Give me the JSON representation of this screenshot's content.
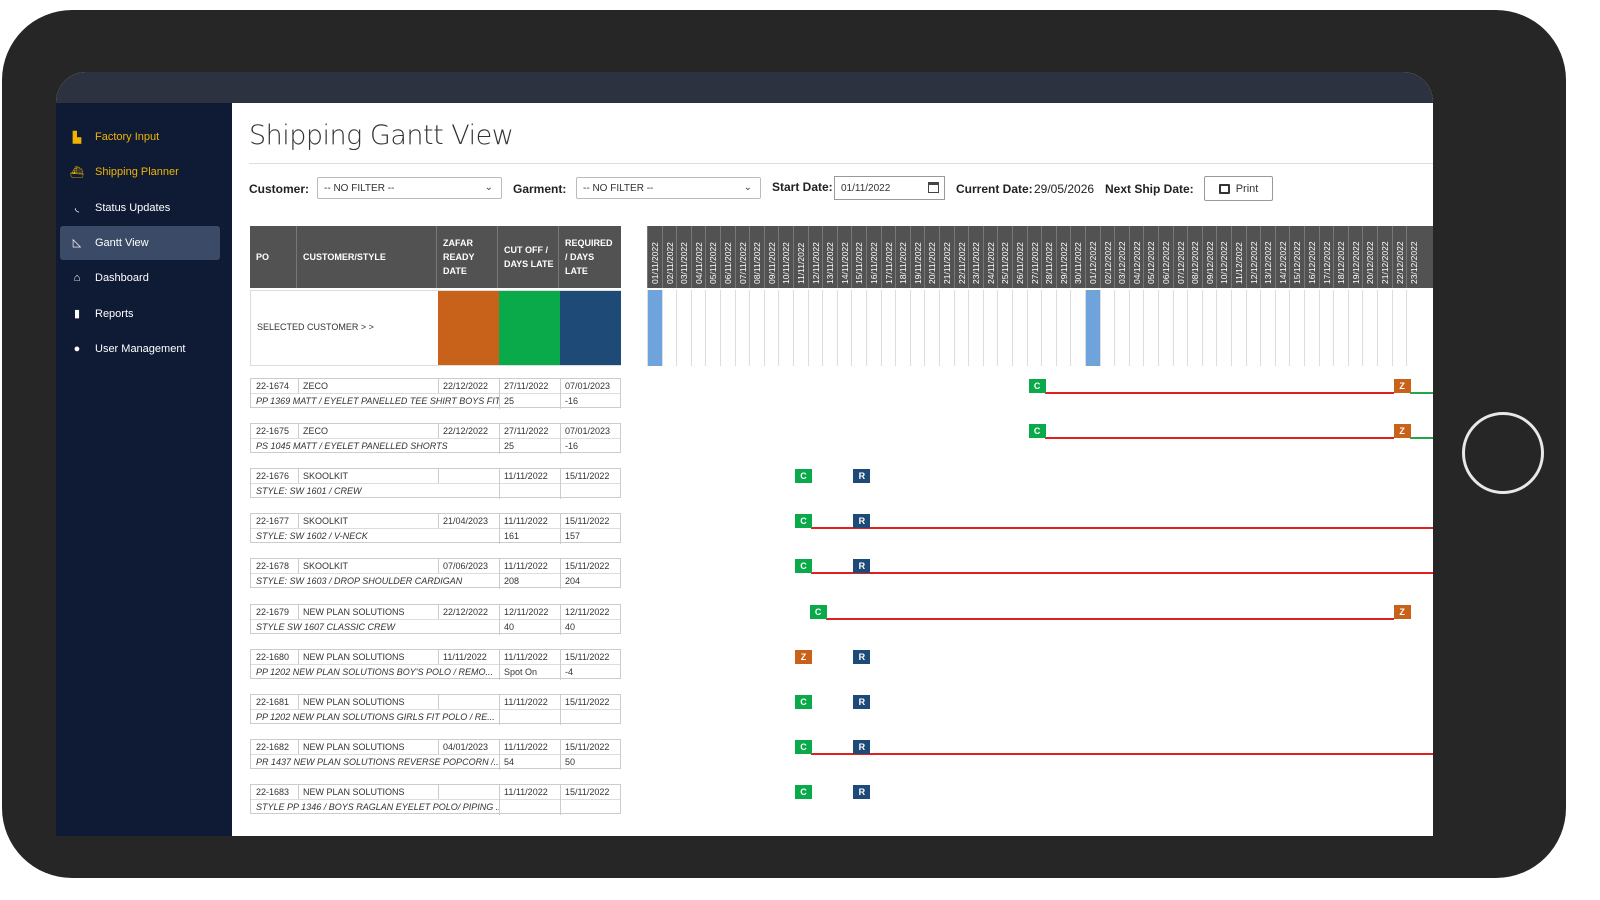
{
  "sidebar": {
    "items": [
      {
        "label": "Factory Input",
        "icon": "factory-icon",
        "color": "#f0b400"
      },
      {
        "label": "Shipping Planner",
        "icon": "ship-icon",
        "color": "#f0b400"
      },
      {
        "label": "Status Updates",
        "icon": "rss-icon",
        "color": "#ffffff"
      },
      {
        "label": "Gantt View",
        "icon": "chart-area-icon",
        "color": "#ffffff",
        "active": true
      },
      {
        "label": "Dashboard",
        "icon": "home-icon",
        "color": "#ffffff"
      },
      {
        "label": "Reports",
        "icon": "book-icon",
        "color": "#ffffff"
      },
      {
        "label": "User Management",
        "icon": "user-icon",
        "color": "#ffffff"
      }
    ]
  },
  "page": {
    "title": "Shipping Gantt View"
  },
  "filters": {
    "customer_label": "Customer:",
    "customer_value": "-- NO FILTER --",
    "garment_label": "Garment:",
    "garment_value": "-- NO FILTER --",
    "start_date_label": "Start Date:",
    "start_date_value": "01/11/2022",
    "current_date_label": "Current Date:",
    "current_date_value": "29/05/2026",
    "next_ship_label": "Next Ship Date:",
    "print_label": "Print"
  },
  "table": {
    "headers": {
      "po": "PO",
      "customer": "CUSTOMER/STYLE",
      "zafar_l1": "ZAFAR",
      "zafar_l2": "READY",
      "zafar_l3": "DATE",
      "cutoff_l1": "CUT OFF /",
      "cutoff_l2": "DAYS LATE",
      "req_l1": "REQUIRED",
      "req_l2": "/ DAYS",
      "req_l3": "LATE"
    },
    "selected_label": "SELECTED CUSTOMER > >",
    "swatch_colors": [
      "#c8621a",
      "#0aaa4a",
      "#1e4a78"
    ],
    "rows": [
      {
        "po": "22-1674",
        "customer": "ZECO",
        "style": "PP 1369 MATT / EYELET PANELLED TEE SHIRT BOYS FIT",
        "zafar": "22/12/2022",
        "cutoff": "27/11/2022",
        "cutoff_days": "25",
        "required": "07/01/2023",
        "req_days": "-16"
      },
      {
        "po": "22-1675",
        "customer": "ZECO",
        "style": "PS 1045 MATT / EYELET PANELLED SHORTS",
        "zafar": "22/12/2022",
        "cutoff": "27/11/2022",
        "cutoff_days": "25",
        "required": "07/01/2023",
        "req_days": "-16"
      },
      {
        "po": "22-1676",
        "customer": "SKOOLKIT",
        "style": "STYLE: SW 1601 / CREW",
        "zafar": "",
        "cutoff": "11/11/2022",
        "cutoff_days": "",
        "required": "15/11/2022",
        "req_days": ""
      },
      {
        "po": "22-1677",
        "customer": "SKOOLKIT",
        "style": "STYLE: SW 1602 / V-NECK",
        "zafar": "21/04/2023",
        "cutoff": "11/11/2022",
        "cutoff_days": "161",
        "required": "15/11/2022",
        "req_days": "157"
      },
      {
        "po": "22-1678",
        "customer": "SKOOLKIT",
        "style": "STYLE: SW 1603 / DROP SHOULDER CARDIGAN",
        "zafar": "07/06/2023",
        "cutoff": "11/11/2022",
        "cutoff_days": "208",
        "required": "15/11/2022",
        "req_days": "204"
      },
      {
        "po": "22-1679",
        "customer": "NEW PLAN SOLUTIONS",
        "style": "STYLE SW 1607 CLASSIC CREW",
        "zafar": "22/12/2022",
        "cutoff": "12/11/2022",
        "cutoff_days": "40",
        "required": "12/11/2022",
        "req_days": "40"
      },
      {
        "po": "22-1680",
        "customer": "NEW PLAN SOLUTIONS",
        "style": "PP 1202 NEW PLAN SOLUTIONS BOY'S POLO / REMO...",
        "zafar": "11/11/2022",
        "cutoff": "11/11/2022",
        "cutoff_days": "Spot On",
        "required": "15/11/2022",
        "req_days": "-4"
      },
      {
        "po": "22-1681",
        "customer": "NEW PLAN SOLUTIONS",
        "style": "PP 1202 NEW PLAN SOLUTIONS GIRLS FIT POLO / RE...",
        "zafar": "",
        "cutoff": "11/11/2022",
        "cutoff_days": "",
        "required": "15/11/2022",
        "req_days": ""
      },
      {
        "po": "22-1682",
        "customer": "NEW PLAN SOLUTIONS",
        "style": "PR 1437 NEW PLAN SOLUTIONS REVERSE POPCORN /...",
        "zafar": "04/01/2023",
        "cutoff": "11/11/2022",
        "cutoff_days": "54",
        "required": "15/11/2022",
        "req_days": "50"
      },
      {
        "po": "22-1683",
        "customer": "NEW PLAN SOLUTIONS",
        "style": "STYLE PP 1346 / BOYS RAGLAN EYELET POLO/ PIPING ...",
        "zafar": "",
        "cutoff": "11/11/2022",
        "cutoff_days": "",
        "required": "15/11/2022",
        "req_days": ""
      }
    ]
  },
  "gantt": {
    "dates": [
      "01/11/2022",
      "02/11/2022",
      "03/11/2022",
      "04/11/2022",
      "05/11/2022",
      "06/11/2022",
      "07/11/2022",
      "08/11/2022",
      "09/11/2022",
      "10/11/2022",
      "11/11/2022",
      "12/11/2022",
      "13/11/2022",
      "14/11/2022",
      "15/11/2022",
      "16/11/2022",
      "17/11/2022",
      "18/11/2022",
      "19/11/2022",
      "20/11/2022",
      "21/11/2022",
      "22/11/2022",
      "23/11/2022",
      "24/11/2022",
      "25/11/2022",
      "26/11/2022",
      "27/11/2022",
      "28/11/2022",
      "29/11/2022",
      "30/11/2022",
      "01/12/2022",
      "02/12/2022",
      "03/12/2022",
      "04/12/2022",
      "05/12/2022",
      "06/12/2022",
      "07/12/2022",
      "08/12/2022",
      "09/12/2022",
      "10/12/2022",
      "11/12/2022",
      "12/12/2022",
      "13/12/2022",
      "14/12/2022",
      "15/12/2022",
      "16/12/2022",
      "17/12/2022",
      "18/12/2022",
      "19/12/2022",
      "20/12/2022",
      "21/12/2022",
      "22/12/2022",
      "23/12/2022"
    ],
    "highlight_dates": [
      "01/11/2022",
      "01/12/2022"
    ],
    "bars": [
      {
        "markers": [
          {
            "letter": "C",
            "type": "c",
            "date": "27/11/2022"
          },
          {
            "letter": "Z",
            "type": "z",
            "date": "22/12/2022"
          }
        ],
        "line": [
          "27/11/2022",
          "22/12/2022"
        ],
        "green_tail": true
      },
      {
        "markers": [
          {
            "letter": "C",
            "type": "c",
            "date": "27/11/2022"
          },
          {
            "letter": "Z",
            "type": "z",
            "date": "22/12/2022"
          }
        ],
        "line": [
          "27/11/2022",
          "22/12/2022"
        ],
        "green_tail": true
      },
      {
        "markers": [
          {
            "letter": "C",
            "type": "c",
            "date": "11/11/2022"
          },
          {
            "letter": "R",
            "type": "r",
            "date": "15/11/2022"
          }
        ],
        "line": null
      },
      {
        "markers": [
          {
            "letter": "C",
            "type": "c",
            "date": "11/11/2022"
          },
          {
            "letter": "R",
            "type": "r",
            "date": "15/11/2022"
          }
        ],
        "line": [
          "11/11/2022",
          "end"
        ]
      },
      {
        "markers": [
          {
            "letter": "C",
            "type": "c",
            "date": "11/11/2022"
          },
          {
            "letter": "R",
            "type": "r",
            "date": "15/11/2022"
          }
        ],
        "line": [
          "11/11/2022",
          "end"
        ]
      },
      {
        "markers": [
          {
            "letter": "C",
            "type": "c",
            "date": "12/11/2022"
          },
          {
            "letter": "Z",
            "type": "z",
            "date": "22/12/2022"
          }
        ],
        "line": [
          "12/11/2022",
          "22/12/2022"
        ]
      },
      {
        "markers": [
          {
            "letter": "Z",
            "type": "z",
            "date": "11/11/2022"
          },
          {
            "letter": "R",
            "type": "r",
            "date": "15/11/2022"
          }
        ],
        "line": null
      },
      {
        "markers": [
          {
            "letter": "C",
            "type": "c",
            "date": "11/11/2022"
          },
          {
            "letter": "R",
            "type": "r",
            "date": "15/11/2022"
          }
        ],
        "line": null
      },
      {
        "markers": [
          {
            "letter": "C",
            "type": "c",
            "date": "11/11/2022"
          },
          {
            "letter": "R",
            "type": "r",
            "date": "15/11/2022"
          }
        ],
        "line": [
          "11/11/2022",
          "end"
        ]
      },
      {
        "markers": [
          {
            "letter": "C",
            "type": "c",
            "date": "11/11/2022"
          },
          {
            "letter": "R",
            "type": "r",
            "date": "15/11/2022"
          }
        ],
        "line": null
      }
    ]
  }
}
